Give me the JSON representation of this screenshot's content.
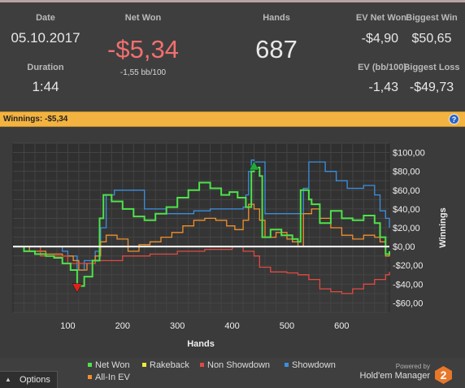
{
  "stats": {
    "date_label": "Date",
    "date_value": "05.10.2017",
    "duration_label": "Duration",
    "duration_value": "1:44",
    "netwon_label": "Net Won",
    "netwon_value": "-$5,34",
    "netwon_sub": "-1,55 bb/100",
    "hands_label": "Hands",
    "hands_value": "687",
    "evnet_label": "EV Net Won",
    "evnet_value": "-$4,90",
    "evbb_label": "EV (bb/100)",
    "evbb_value": "-1,43",
    "bigwin_label": "Biggest Win",
    "bigwin_value": "$50,65",
    "bigloss_label": "Biggest Loss",
    "bigloss_value": "-$49,73"
  },
  "winbar": {
    "text": "Winnings: -$5,34",
    "help_icon": "?"
  },
  "legend": {
    "items": [
      {
        "label": "Net Won",
        "color": "#4ee24a"
      },
      {
        "label": "Rakeback",
        "color": "#f2ea3a"
      },
      {
        "label": "Non Showdown",
        "color": "#e04a42"
      },
      {
        "label": "Showdown",
        "color": "#3b8fe0"
      },
      {
        "label": "All-In EV",
        "color": "#f0902e"
      }
    ]
  },
  "options": {
    "arrow": "▲",
    "label": "Options"
  },
  "branding": {
    "powered_by": "Powered by",
    "name": "Hold'em Manager",
    "logo_digit": "2"
  },
  "chart_data": {
    "type": "line",
    "xlabel": "Hands",
    "ylabel": "Winnings",
    "xlim": [
      0,
      687
    ],
    "ylim": [
      -70,
      110
    ],
    "x_ticks": [
      100,
      200,
      300,
      400,
      500,
      600
    ],
    "y_ticks": [
      100,
      80,
      60,
      40,
      20,
      0,
      -20,
      -40,
      -60
    ],
    "y_tick_labels": [
      "$100,00",
      "$80,00",
      "$60,00",
      "$40,00",
      "$20,00",
      "$0,00",
      "-$20,00",
      "-$40,00",
      "-$60,00"
    ],
    "grid": true,
    "zero_line": true,
    "markers": [
      {
        "type": "max",
        "hand": 440,
        "value": 84,
        "color": "#22a83c"
      },
      {
        "type": "min",
        "hand": 117,
        "value": -42,
        "color": "#e0201a"
      }
    ],
    "series": [
      {
        "name": "Net Won",
        "color": "#4ee24a",
        "x": [
          0,
          20,
          40,
          60,
          75,
          90,
          105,
          117,
          130,
          145,
          158,
          165,
          180,
          200,
          220,
          240,
          260,
          280,
          300,
          320,
          340,
          360,
          380,
          395,
          410,
          425,
          435,
          440,
          450,
          455,
          470,
          490,
          510,
          520,
          525,
          540,
          545,
          560,
          580,
          600,
          620,
          640,
          660,
          670,
          680,
          687
        ],
        "y": [
          0,
          -5,
          -8,
          -10,
          -12,
          -18,
          -25,
          -42,
          -32,
          -15,
          30,
          55,
          48,
          40,
          32,
          28,
          35,
          42,
          52,
          60,
          68,
          62,
          55,
          58,
          52,
          42,
          80,
          84,
          75,
          10,
          18,
          12,
          8,
          5,
          60,
          50,
          45,
          25,
          38,
          30,
          28,
          33,
          25,
          10,
          -8,
          -5
        ]
      },
      {
        "name": "Rakeback",
        "color": "#f2ea3a",
        "x": [
          0,
          687
        ],
        "y": [
          0,
          0
        ]
      },
      {
        "name": "Non Showdown",
        "color": "#e04a42",
        "x": [
          0,
          50,
          100,
          150,
          200,
          250,
          300,
          350,
          400,
          420,
          440,
          450,
          470,
          500,
          520,
          540,
          560,
          580,
          600,
          620,
          640,
          660,
          680,
          687
        ],
        "y": [
          0,
          -10,
          -18,
          -15,
          -10,
          -8,
          -5,
          -3,
          0,
          -5,
          -10,
          -22,
          -27,
          -28,
          -30,
          -35,
          -45,
          -48,
          -50,
          -45,
          -40,
          -35,
          -30,
          -27
        ]
      },
      {
        "name": "Showdown",
        "color": "#3b8fe0",
        "x": [
          0,
          50,
          90,
          100,
          117,
          130,
          150,
          160,
          170,
          185,
          200,
          240,
          280,
          300,
          330,
          360,
          380,
          410,
          420,
          425,
          430,
          435,
          440,
          460,
          480,
          500,
          520,
          530,
          540,
          550,
          570,
          590,
          610,
          640,
          660,
          670,
          680,
          687
        ],
        "y": [
          0,
          0,
          -5,
          -10,
          -25,
          -15,
          -5,
          20,
          55,
          60,
          60,
          40,
          35,
          35,
          38,
          40,
          40,
          40,
          42,
          55,
          80,
          92,
          90,
          35,
          35,
          35,
          35,
          62,
          90,
          90,
          80,
          70,
          62,
          65,
          55,
          38,
          30,
          20
        ]
      },
      {
        "name": "All-In EV",
        "color": "#f0902e",
        "x": [
          0,
          30,
          60,
          90,
          110,
          120,
          135,
          150,
          160,
          170,
          190,
          210,
          230,
          250,
          270,
          290,
          310,
          330,
          350,
          370,
          390,
          405,
          420,
          430,
          440,
          450,
          460,
          480,
          500,
          510,
          520,
          530,
          545,
          560,
          580,
          600,
          620,
          640,
          660,
          670,
          680,
          687
        ],
        "y": [
          0,
          -5,
          -8,
          -10,
          -15,
          -25,
          -18,
          -10,
          5,
          12,
          8,
          -5,
          2,
          5,
          10,
          15,
          22,
          28,
          30,
          28,
          22,
          18,
          28,
          45,
          40,
          28,
          10,
          15,
          8,
          5,
          0,
          35,
          40,
          30,
          20,
          12,
          8,
          12,
          10,
          5,
          -10,
          -5
        ]
      }
    ]
  }
}
